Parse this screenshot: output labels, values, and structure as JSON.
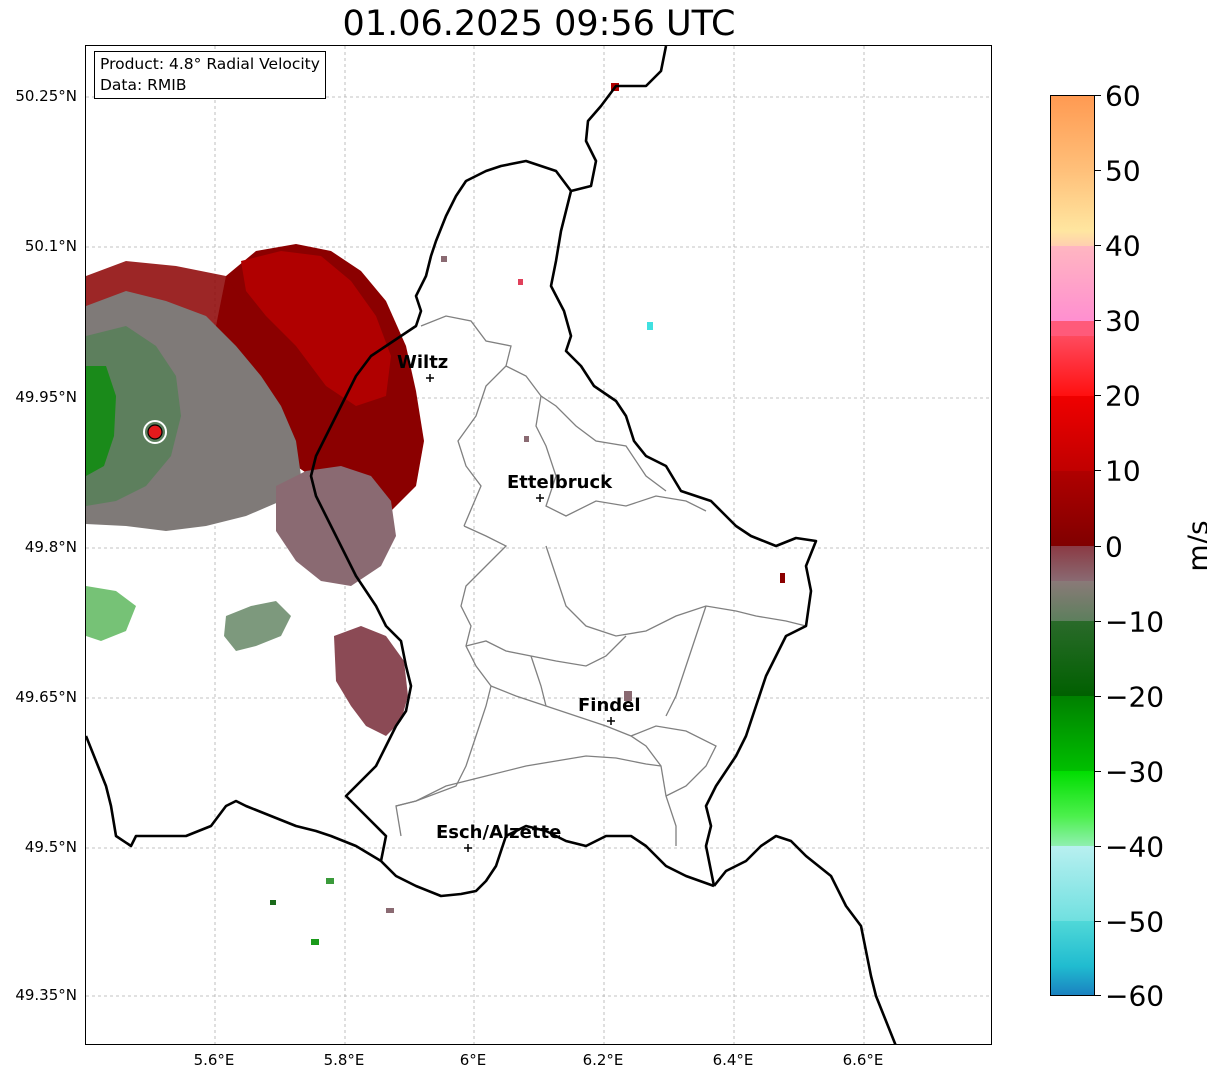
{
  "title": "01.06.2025 09:56 UTC",
  "info_box": {
    "product": "Product: 4.8° Radial Velocity",
    "data_source": "Data: RMIB"
  },
  "map": {
    "lat_ticks": [
      "50.25°N",
      "50.1°N",
      "49.95°N",
      "49.8°N",
      "49.65°N",
      "49.5°N",
      "49.35°N"
    ],
    "lon_ticks": [
      "5.6°E",
      "5.8°E",
      "6°E",
      "6.2°E",
      "6.4°E",
      "6.6°E"
    ],
    "cities": [
      {
        "name": "Wiltz"
      },
      {
        "name": "Ettelbruck"
      },
      {
        "name": "Findel"
      },
      {
        "name": "Esch/Alzette"
      }
    ],
    "radar_site_color": "#e31a1c",
    "border_color": "#000000",
    "canton_color": "#808080",
    "grid_color": "#b0b0b0"
  },
  "colorbar": {
    "label": "m/s",
    "ticks": [
      "60",
      "50",
      "40",
      "30",
      "20",
      "10",
      "0",
      "−10",
      "−20",
      "−30",
      "−40",
      "−50",
      "−60"
    ],
    "min": -60,
    "max": 60
  }
}
